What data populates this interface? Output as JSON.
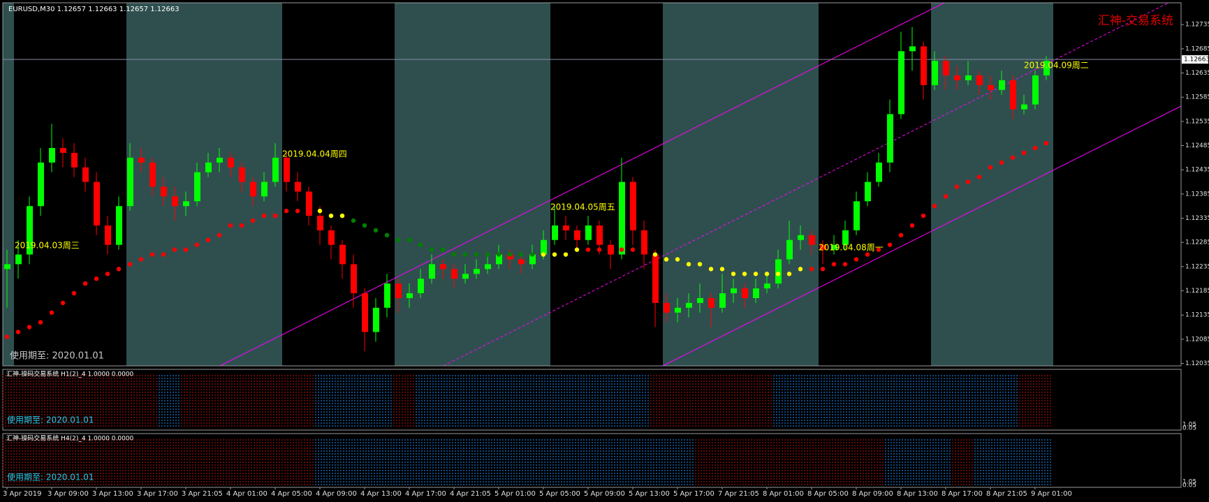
{
  "chart_data": {
    "type": "candlestick",
    "header": "EURUSD,M30  1.12657 1.12663 1.12657 1.12663",
    "brand": "汇神-交易系统",
    "footer": "使用期至: 2020.01.01",
    "up_color": "#00ff00",
    "down_color": "#ff0000",
    "ylim": [
      1.1203,
      1.1278
    ],
    "yticks": [
      1.12035,
      1.12085,
      1.12135,
      1.12185,
      1.12235,
      1.12285,
      1.12335,
      1.12385,
      1.12435,
      1.12485,
      1.12535,
      1.12585,
      1.12635,
      1.12685,
      1.12735
    ],
    "last_price": 1.12663,
    "categories": [
      "3 Apr 2019",
      null,
      null,
      null,
      "3 Apr 09:00",
      null,
      null,
      null,
      "3 Apr 13:00",
      null,
      null,
      null,
      "3 Apr 17:00",
      null,
      null,
      null,
      "3 Apr 21:05",
      null,
      null,
      null,
      "4 Apr 01:00",
      null,
      null,
      null,
      "4 Apr 05:00",
      null,
      null,
      null,
      "4 Apr 09:00",
      null,
      null,
      null,
      "4 Apr 13:00",
      null,
      null,
      null,
      "4 Apr 17:00",
      null,
      null,
      null,
      "4 Apr 21:05",
      null,
      null,
      null,
      "5 Apr 01:00",
      null,
      null,
      null,
      "5 Apr 05:00",
      null,
      null,
      null,
      "5 Apr 09:00",
      null,
      null,
      null,
      "5 Apr 13:00",
      null,
      null,
      null,
      "5 Apr 17:00",
      null,
      null,
      null,
      "7 Apr 21:05",
      null,
      null,
      null,
      "8 Apr 01:00",
      null,
      null,
      null,
      "8 Apr 05:00",
      null,
      null,
      null,
      "8 Apr 09:00",
      null,
      null,
      null,
      "8 Apr 13:00",
      null,
      null,
      null,
      "8 Apr 17:00",
      null,
      null,
      null,
      "8 Apr 21:05",
      null,
      null,
      null,
      "9 Apr 01:00",
      null
    ],
    "ohlc": [
      [
        1.1223,
        1.1227,
        1.1215,
        1.1224
      ],
      [
        1.1224,
        1.1229,
        1.1221,
        1.1226
      ],
      [
        1.1226,
        1.1238,
        1.1224,
        1.1236
      ],
      [
        1.1236,
        1.1248,
        1.1234,
        1.1245
      ],
      [
        1.1245,
        1.1253,
        1.1243,
        1.1248
      ],
      [
        1.1248,
        1.125,
        1.1244,
        1.1247
      ],
      [
        1.1247,
        1.1249,
        1.1242,
        1.1244
      ],
      [
        1.1244,
        1.1246,
        1.1239,
        1.1241
      ],
      [
        1.1241,
        1.1243,
        1.123,
        1.1232
      ],
      [
        1.1232,
        1.1234,
        1.1226,
        1.1228
      ],
      [
        1.1228,
        1.1238,
        1.1227,
        1.1236
      ],
      [
        1.1236,
        1.1249,
        1.1235,
        1.1246
      ],
      [
        1.1246,
        1.1248,
        1.1243,
        1.1245
      ],
      [
        1.1245,
        1.1246,
        1.1238,
        1.124
      ],
      [
        1.124,
        1.1242,
        1.1236,
        1.1238
      ],
      [
        1.1238,
        1.124,
        1.1233,
        1.1236
      ],
      [
        1.1236,
        1.1239,
        1.1234,
        1.1237
      ],
      [
        1.1237,
        1.1245,
        1.1236,
        1.1243
      ],
      [
        1.1243,
        1.1247,
        1.1242,
        1.1245
      ],
      [
        1.1245,
        1.1248,
        1.1243,
        1.1246
      ],
      [
        1.1246,
        1.1247,
        1.1242,
        1.1244
      ],
      [
        1.1244,
        1.1245,
        1.1239,
        1.1241
      ],
      [
        1.1241,
        1.1242,
        1.1236,
        1.1238
      ],
      [
        1.1238,
        1.1243,
        1.1237,
        1.1241
      ],
      [
        1.1241,
        1.1249,
        1.124,
        1.1246
      ],
      [
        1.1246,
        1.1247,
        1.1239,
        1.1241
      ],
      [
        1.1241,
        1.1243,
        1.1237,
        1.1239
      ],
      [
        1.1239,
        1.124,
        1.1232,
        1.1234
      ],
      [
        1.1234,
        1.1236,
        1.1228,
        1.1231
      ],
      [
        1.1231,
        1.1232,
        1.1225,
        1.1228
      ],
      [
        1.1228,
        1.1229,
        1.1221,
        1.1224
      ],
      [
        1.1224,
        1.1226,
        1.1215,
        1.1218
      ],
      [
        1.1218,
        1.1219,
        1.1206,
        1.121
      ],
      [
        1.121,
        1.1217,
        1.1208,
        1.1215
      ],
      [
        1.1215,
        1.1222,
        1.1213,
        1.122
      ],
      [
        1.122,
        1.1221,
        1.1214,
        1.1217
      ],
      [
        1.1217,
        1.122,
        1.1215,
        1.1218
      ],
      [
        1.1218,
        1.1223,
        1.1217,
        1.1221
      ],
      [
        1.1221,
        1.1226,
        1.122,
        1.1224
      ],
      [
        1.1224,
        1.1225,
        1.1221,
        1.1223
      ],
      [
        1.1223,
        1.1224,
        1.1219,
        1.1221
      ],
      [
        1.1221,
        1.1224,
        1.122,
        1.1222
      ],
      [
        1.1222,
        1.1225,
        1.1221,
        1.1223
      ],
      [
        1.1223,
        1.1226,
        1.1222,
        1.1224
      ],
      [
        1.1224,
        1.1228,
        1.1223,
        1.1226
      ],
      [
        1.1226,
        1.1227,
        1.1223,
        1.1225
      ],
      [
        1.1225,
        1.1226,
        1.1222,
        1.1224
      ],
      [
        1.1224,
        1.1228,
        1.1223,
        1.1226
      ],
      [
        1.1226,
        1.1231,
        1.1225,
        1.1229
      ],
      [
        1.1229,
        1.1236,
        1.1228,
        1.1232
      ],
      [
        1.1232,
        1.1234,
        1.1229,
        1.1231
      ],
      [
        1.1231,
        1.1232,
        1.1227,
        1.1229
      ],
      [
        1.1229,
        1.1234,
        1.1228,
        1.1232
      ],
      [
        1.1232,
        1.1233,
        1.1226,
        1.1228
      ],
      [
        1.1228,
        1.1229,
        1.1223,
        1.1226
      ],
      [
        1.1226,
        1.1246,
        1.1225,
        1.1241
      ],
      [
        1.1241,
        1.1242,
        1.1228,
        1.1231
      ],
      [
        1.1231,
        1.1233,
        1.1223,
        1.1226
      ],
      [
        1.1226,
        1.1227,
        1.1211,
        1.1216
      ],
      [
        1.1216,
        1.1218,
        1.1212,
        1.1214
      ],
      [
        1.1214,
        1.1217,
        1.1212,
        1.1215
      ],
      [
        1.1215,
        1.1218,
        1.1213,
        1.1216
      ],
      [
        1.1216,
        1.122,
        1.1214,
        1.1217
      ],
      [
        1.1217,
        1.1218,
        1.1211,
        1.1215
      ],
      [
        1.1215,
        1.1222,
        1.1214,
        1.1218
      ],
      [
        1.1218,
        1.1221,
        1.1216,
        1.1219
      ],
      [
        1.1219,
        1.122,
        1.1215,
        1.1217
      ],
      [
        1.1217,
        1.1221,
        1.1216,
        1.1219
      ],
      [
        1.1219,
        1.1222,
        1.1218,
        1.122
      ],
      [
        1.122,
        1.1227,
        1.1219,
        1.1225
      ],
      [
        1.1225,
        1.1233,
        1.1224,
        1.1229
      ],
      [
        1.1229,
        1.1232,
        1.1227,
        1.123
      ],
      [
        1.123,
        1.1231,
        1.1226,
        1.1228
      ],
      [
        1.1228,
        1.1229,
        1.1224,
        1.1227
      ],
      [
        1.1227,
        1.123,
        1.1226,
        1.1228
      ],
      [
        1.1228,
        1.1233,
        1.1227,
        1.1231
      ],
      [
        1.1231,
        1.1239,
        1.123,
        1.1237
      ],
      [
        1.1237,
        1.1243,
        1.1236,
        1.1241
      ],
      [
        1.1241,
        1.1247,
        1.124,
        1.1245
      ],
      [
        1.1245,
        1.1258,
        1.1243,
        1.1255
      ],
      [
        1.1255,
        1.1272,
        1.1254,
        1.1268
      ],
      [
        1.1268,
        1.1273,
        1.1264,
        1.1269
      ],
      [
        1.1269,
        1.127,
        1.1258,
        1.1261
      ],
      [
        1.1261,
        1.1268,
        1.126,
        1.1266
      ],
      [
        1.1266,
        1.1267,
        1.126,
        1.1263
      ],
      [
        1.1263,
        1.1265,
        1.126,
        1.1262
      ],
      [
        1.1262,
        1.1266,
        1.1261,
        1.1263
      ],
      [
        1.1263,
        1.1264,
        1.1259,
        1.1261
      ],
      [
        1.1261,
        1.1263,
        1.1258,
        1.126
      ],
      [
        1.126,
        1.1264,
        1.1259,
        1.1262
      ],
      [
        1.1262,
        1.1263,
        1.1254,
        1.1256
      ],
      [
        1.1256,
        1.1259,
        1.1255,
        1.1257
      ],
      [
        1.1257,
        1.1264,
        1.1256,
        1.1263
      ],
      [
        1.1263,
        1.1267,
        1.1262,
        1.1266
      ]
    ],
    "series": [
      {
        "color": "#ff0000",
        "values": [
          1.1209,
          1.121,
          1.1211,
          1.1212,
          1.1214,
          1.1216,
          1.1218,
          1.122,
          1.1221,
          1.1222,
          1.1223,
          1.1224,
          1.1225,
          1.1226,
          1.1226,
          1.1227,
          1.1227,
          1.1228,
          1.1229,
          1.123,
          1.1232,
          1.1232,
          1.1233,
          1.1234,
          1.1234,
          1.1235,
          1.1235,
          1.1235,
          null,
          null,
          null,
          null,
          null,
          null,
          null,
          null,
          null,
          null,
          null,
          null,
          null,
          null,
          null,
          null,
          null,
          null,
          null,
          null,
          null,
          null,
          null,
          null,
          1.1227,
          1.1227,
          1.1227,
          1.1227,
          1.1227,
          1.1227,
          null,
          null,
          null,
          null,
          null,
          null,
          null,
          null,
          null,
          null,
          null,
          null,
          null,
          null,
          1.1223,
          1.1223,
          1.1224,
          1.1224,
          1.1225,
          1.1226,
          1.1227,
          1.1228,
          1.123,
          1.1232,
          1.1234,
          1.1236,
          1.1238,
          1.124,
          1.1241,
          1.1242,
          1.1244,
          1.1245,
          1.1246,
          1.1247,
          1.1248,
          1.1249
        ]
      },
      {
        "color": "#ffff00",
        "values": [
          null,
          null,
          null,
          null,
          null,
          null,
          null,
          null,
          null,
          null,
          null,
          null,
          null,
          null,
          null,
          null,
          null,
          null,
          null,
          null,
          null,
          null,
          null,
          null,
          null,
          null,
          null,
          null,
          1.1235,
          1.1234,
          1.1234,
          null,
          null,
          null,
          null,
          null,
          null,
          null,
          null,
          null,
          null,
          null,
          null,
          null,
          null,
          null,
          null,
          null,
          1.1226,
          1.1226,
          1.1226,
          1.1227,
          null,
          null,
          null,
          null,
          null,
          null,
          1.1226,
          1.1225,
          1.1225,
          1.1224,
          1.1224,
          1.1223,
          1.1223,
          1.1222,
          1.1222,
          1.1222,
          1.1222,
          1.1222,
          1.1222,
          1.1223,
          null,
          null,
          null,
          null,
          null,
          null,
          null,
          null,
          null,
          null,
          null,
          null,
          null,
          null,
          null,
          null,
          null,
          null,
          null,
          null,
          null,
          null
        ]
      },
      {
        "color": "#008000",
        "values": [
          null,
          null,
          null,
          null,
          null,
          null,
          null,
          null,
          null,
          null,
          null,
          null,
          null,
          null,
          null,
          null,
          null,
          null,
          null,
          null,
          null,
          null,
          null,
          null,
          null,
          null,
          null,
          null,
          null,
          null,
          null,
          1.1233,
          1.1232,
          1.1231,
          1.123,
          1.1229,
          1.1229,
          1.1228,
          1.1227,
          1.1227,
          1.1226,
          1.1226,
          1.1226,
          1.1226,
          1.1226,
          1.1226,
          1.1226,
          1.1226,
          null,
          null,
          null,
          null,
          null,
          null,
          null,
          null,
          null,
          null,
          null,
          null,
          null,
          null,
          null,
          null,
          null,
          null,
          null,
          null,
          null,
          null,
          null,
          null,
          null,
          null,
          null,
          null,
          null,
          null,
          null,
          null,
          null,
          null,
          null,
          null,
          null,
          null,
          null,
          null,
          null,
          null,
          null,
          null,
          null,
          null
        ]
      }
    ],
    "annotations": [
      "2019.04.03周三",
      "2019.04.04周四",
      "2019.04.05周五",
      "2019.04.08周一",
      "2019.04.09周二"
    ],
    "indicators": [
      {
        "title": "汇神-操码交易系统 H1(2)_4 1.0000 0.0000",
        "footer": "使用期至: 2020.01.01",
        "yticks": [
          1.05,
          0.05
        ],
        "up_color": "#1e90ff",
        "down_color": "#c01010",
        "values": [
          -1,
          -1,
          -1,
          -1,
          -1,
          -1,
          -1,
          -1,
          -1,
          -1,
          -1,
          -1,
          -1,
          -1,
          1,
          1,
          -1,
          -1,
          -1,
          -1,
          -1,
          -1,
          -1,
          -1,
          -1,
          -1,
          -1,
          -1,
          1,
          1,
          1,
          1,
          1,
          1,
          1,
          -1,
          -1,
          1,
          1,
          1,
          1,
          1,
          1,
          1,
          1,
          1,
          1,
          1,
          1,
          1,
          1,
          1,
          1,
          1,
          1,
          1,
          1,
          1,
          -1,
          -1,
          -1,
          -1,
          -1,
          -1,
          -1,
          -1,
          -1,
          -1,
          -1,
          1,
          1,
          1,
          1,
          1,
          1,
          1,
          1,
          1,
          1,
          1,
          1,
          1,
          1,
          1,
          1,
          1,
          1,
          1,
          1,
          1,
          1,
          -1,
          -1,
          -1
        ]
      },
      {
        "title": "汇神-操码交易系统 H4(2)_4 1.0000 0.0000",
        "footer": "使用期至: 2020.01.01",
        "yticks": [
          1.05,
          0.05
        ],
        "up_color": "#1e90ff",
        "down_color": "#c01010",
        "values": [
          -1,
          -1,
          -1,
          -1,
          -1,
          -1,
          -1,
          -1,
          -1,
          -1,
          -1,
          -1,
          -1,
          -1,
          -1,
          -1,
          -1,
          -1,
          -1,
          -1,
          -1,
          -1,
          -1,
          -1,
          -1,
          -1,
          -1,
          -1,
          1,
          1,
          1,
          1,
          1,
          1,
          1,
          1,
          1,
          1,
          1,
          1,
          1,
          1,
          1,
          1,
          1,
          1,
          1,
          1,
          1,
          1,
          1,
          1,
          1,
          1,
          1,
          1,
          1,
          1,
          1,
          1,
          1,
          1,
          -1,
          -1,
          -1,
          -1,
          -1,
          -1,
          -1,
          -1,
          -1,
          -1,
          -1,
          -1,
          -1,
          -1,
          -1,
          -1,
          -1,
          1,
          1,
          1,
          1,
          1,
          1,
          -1,
          -1,
          1,
          1,
          1,
          1,
          1,
          1,
          1
        ]
      }
    ]
  }
}
